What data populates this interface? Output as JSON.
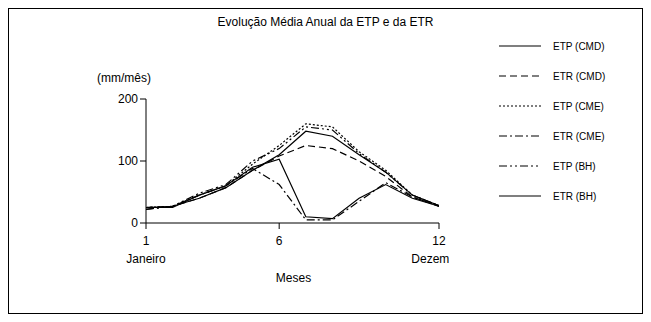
{
  "chart_data": {
    "type": "line",
    "title": "Evolução Média Anual da ETP e da ETR",
    "y_label": "(mm/mês)",
    "x_label": "Meses",
    "x": [
      1,
      2,
      3,
      4,
      5,
      6,
      7,
      8,
      9,
      10,
      11,
      12
    ],
    "xlim": [
      1,
      12
    ],
    "xticks": [
      1,
      6,
      12
    ],
    "ylim": [
      0,
      200
    ],
    "yticks": [
      0,
      100,
      200
    ],
    "annotations": [
      {
        "x": 1,
        "text": "Janeiro"
      },
      {
        "x": 12,
        "text": "Dezembro"
      }
    ],
    "grid": false,
    "legend": "right",
    "series": [
      {
        "name": "ETP (CMD)",
        "color": "#000000",
        "line_style": "solid",
        "values": [
          25,
          27,
          40,
          57,
          85,
          110,
          148,
          140,
          110,
          82,
          45,
          28
        ]
      },
      {
        "name": "ETR (CMD)",
        "color": "#000000",
        "line_style": "dashed",
        "values": [
          25,
          27,
          40,
          57,
          85,
          108,
          125,
          120,
          100,
          75,
          42,
          27
        ]
      },
      {
        "name": "ETP (CME)",
        "color": "#000000",
        "line_style": "dotted",
        "values": [
          25,
          27,
          45,
          60,
          95,
          125,
          160,
          155,
          115,
          85,
          45,
          28
        ]
      },
      {
        "name": "ETR (CME)",
        "color": "#000000",
        "line_style": "dashdot",
        "values": [
          22,
          27,
          45,
          60,
          88,
          62,
          5,
          5,
          35,
          65,
          42,
          27
        ]
      },
      {
        "name": "ETP (BH)",
        "color": "#000000",
        "line_style": "dashdotdot",
        "values": [
          22,
          27,
          48,
          62,
          100,
          120,
          155,
          150,
          112,
          82,
          45,
          28
        ]
      },
      {
        "name": "ETR (BH)",
        "color": "#000000",
        "line_style": "solid",
        "values": [
          25,
          25,
          45,
          60,
          90,
          103,
          10,
          7,
          40,
          62,
          40,
          27
        ]
      }
    ]
  }
}
